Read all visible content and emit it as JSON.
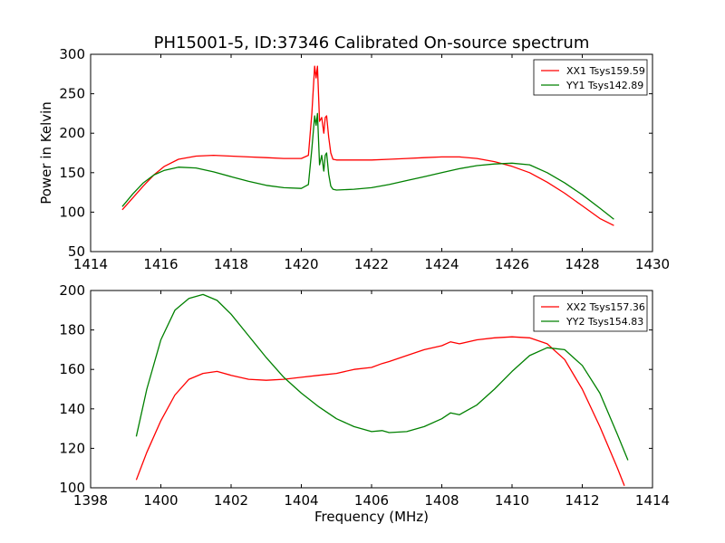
{
  "title": "PH15001-5, ID:37346 Calibrated On-source spectrum",
  "colors": {
    "red": "#ff0000",
    "green": "#008000"
  },
  "chart_data": [
    {
      "type": "line",
      "title": "PH15001-5, ID:37346 Calibrated On-source spectrum",
      "xlabel": "",
      "ylabel": "Power in Kelvin",
      "xlim": [
        1414,
        1430
      ],
      "ylim": [
        50,
        300
      ],
      "x_ticks": [
        "1414",
        "1416",
        "1418",
        "1420",
        "1422",
        "1424",
        "1426",
        "1428",
        "1430"
      ],
      "y_ticks": [
        "50",
        "100",
        "150",
        "200",
        "250",
        "300"
      ],
      "legend_position": "top-right",
      "grid": false,
      "series": [
        {
          "name": "XX1 Tsys159.59",
          "color": "#ff0000",
          "x": [
            1414.9,
            1415.2,
            1415.5,
            1415.8,
            1416.1,
            1416.5,
            1417.0,
            1417.5,
            1418.0,
            1418.5,
            1419.0,
            1419.5,
            1420.0,
            1420.2,
            1420.3,
            1420.38,
            1420.42,
            1420.46,
            1420.52,
            1420.58,
            1420.64,
            1420.68,
            1420.72,
            1420.78,
            1420.84,
            1420.9,
            1421.0,
            1421.5,
            1422.0,
            1422.5,
            1423.0,
            1423.5,
            1424.0,
            1424.5,
            1425.0,
            1425.5,
            1426.0,
            1426.5,
            1427.0,
            1427.5,
            1428.0,
            1428.5,
            1428.9
          ],
          "y": [
            103,
            118,
            133,
            147,
            158,
            167,
            171,
            172,
            171,
            170,
            169,
            168,
            168,
            172,
            225,
            285,
            270,
            285,
            215,
            220,
            200,
            220,
            222,
            195,
            175,
            167,
            166,
            166,
            166,
            167,
            168,
            169,
            170,
            170,
            168,
            164,
            158,
            150,
            138,
            124,
            108,
            92,
            83
          ]
        },
        {
          "name": "YY1 Tsys142.89",
          "color": "#008000",
          "x": [
            1414.9,
            1415.2,
            1415.5,
            1415.8,
            1416.1,
            1416.5,
            1417.0,
            1417.5,
            1418.0,
            1418.5,
            1419.0,
            1419.5,
            1420.0,
            1420.2,
            1420.3,
            1420.38,
            1420.42,
            1420.46,
            1420.52,
            1420.58,
            1420.64,
            1420.68,
            1420.72,
            1420.78,
            1420.84,
            1420.9,
            1421.0,
            1421.5,
            1422.0,
            1422.5,
            1423.0,
            1423.5,
            1424.0,
            1424.5,
            1425.0,
            1425.5,
            1426.0,
            1426.5,
            1427.0,
            1427.5,
            1428.0,
            1428.5,
            1428.9
          ],
          "y": [
            107,
            123,
            137,
            147,
            153,
            157,
            156,
            151,
            145,
            139,
            134,
            131,
            130,
            135,
            180,
            222,
            210,
            225,
            160,
            172,
            152,
            172,
            175,
            148,
            133,
            129,
            128,
            129,
            131,
            135,
            140,
            145,
            150,
            155,
            159,
            161,
            162,
            160,
            150,
            137,
            122,
            105,
            91
          ]
        }
      ]
    },
    {
      "type": "line",
      "title": "",
      "xlabel": "Frequency (MHz)",
      "ylabel": "",
      "xlim": [
        1398,
        1414
      ],
      "ylim": [
        100,
        200
      ],
      "x_ticks": [
        "1398",
        "1400",
        "1402",
        "1404",
        "1406",
        "1408",
        "1410",
        "1412",
        "1414"
      ],
      "y_ticks": [
        "100",
        "120",
        "140",
        "160",
        "180",
        "200"
      ],
      "legend_position": "top-right",
      "grid": false,
      "series": [
        {
          "name": "XX2 Tsys157.36",
          "color": "#ff0000",
          "x": [
            1399.3,
            1399.6,
            1400.0,
            1400.4,
            1400.8,
            1401.2,
            1401.6,
            1402.0,
            1402.5,
            1403.0,
            1403.5,
            1404.0,
            1404.5,
            1405.0,
            1405.5,
            1406.0,
            1406.3,
            1406.5,
            1407.0,
            1407.5,
            1408.0,
            1408.25,
            1408.5,
            1409.0,
            1409.5,
            1410.0,
            1410.5,
            1411.0,
            1411.5,
            1412.0,
            1412.5,
            1413.0,
            1413.2
          ],
          "y": [
            104,
            118,
            134,
            147,
            155,
            158,
            159,
            157,
            155,
            154.5,
            155,
            156,
            157,
            158,
            160,
            161,
            163,
            164,
            167,
            170,
            172,
            174,
            173,
            175,
            176,
            176.5,
            176,
            173,
            165,
            150,
            131,
            110,
            101
          ]
        },
        {
          "name": "YY2 Tsys154.83",
          "color": "#008000",
          "x": [
            1399.3,
            1399.6,
            1400.0,
            1400.4,
            1400.8,
            1401.2,
            1401.6,
            1402.0,
            1402.5,
            1403.0,
            1403.5,
            1404.0,
            1404.5,
            1405.0,
            1405.5,
            1406.0,
            1406.3,
            1406.5,
            1407.0,
            1407.5,
            1408.0,
            1408.25,
            1408.5,
            1409.0,
            1409.5,
            1410.0,
            1410.5,
            1411.0,
            1411.5,
            1412.0,
            1412.5,
            1413.0,
            1413.3
          ],
          "y": [
            126,
            150,
            175,
            190,
            196,
            198,
            195,
            188,
            177,
            166,
            156,
            148,
            141,
            135,
            131,
            128.5,
            129,
            128,
            128.5,
            131,
            135,
            138,
            137,
            142,
            150,
            159,
            167,
            171,
            170,
            162,
            148,
            127,
            114
          ]
        }
      ]
    }
  ]
}
